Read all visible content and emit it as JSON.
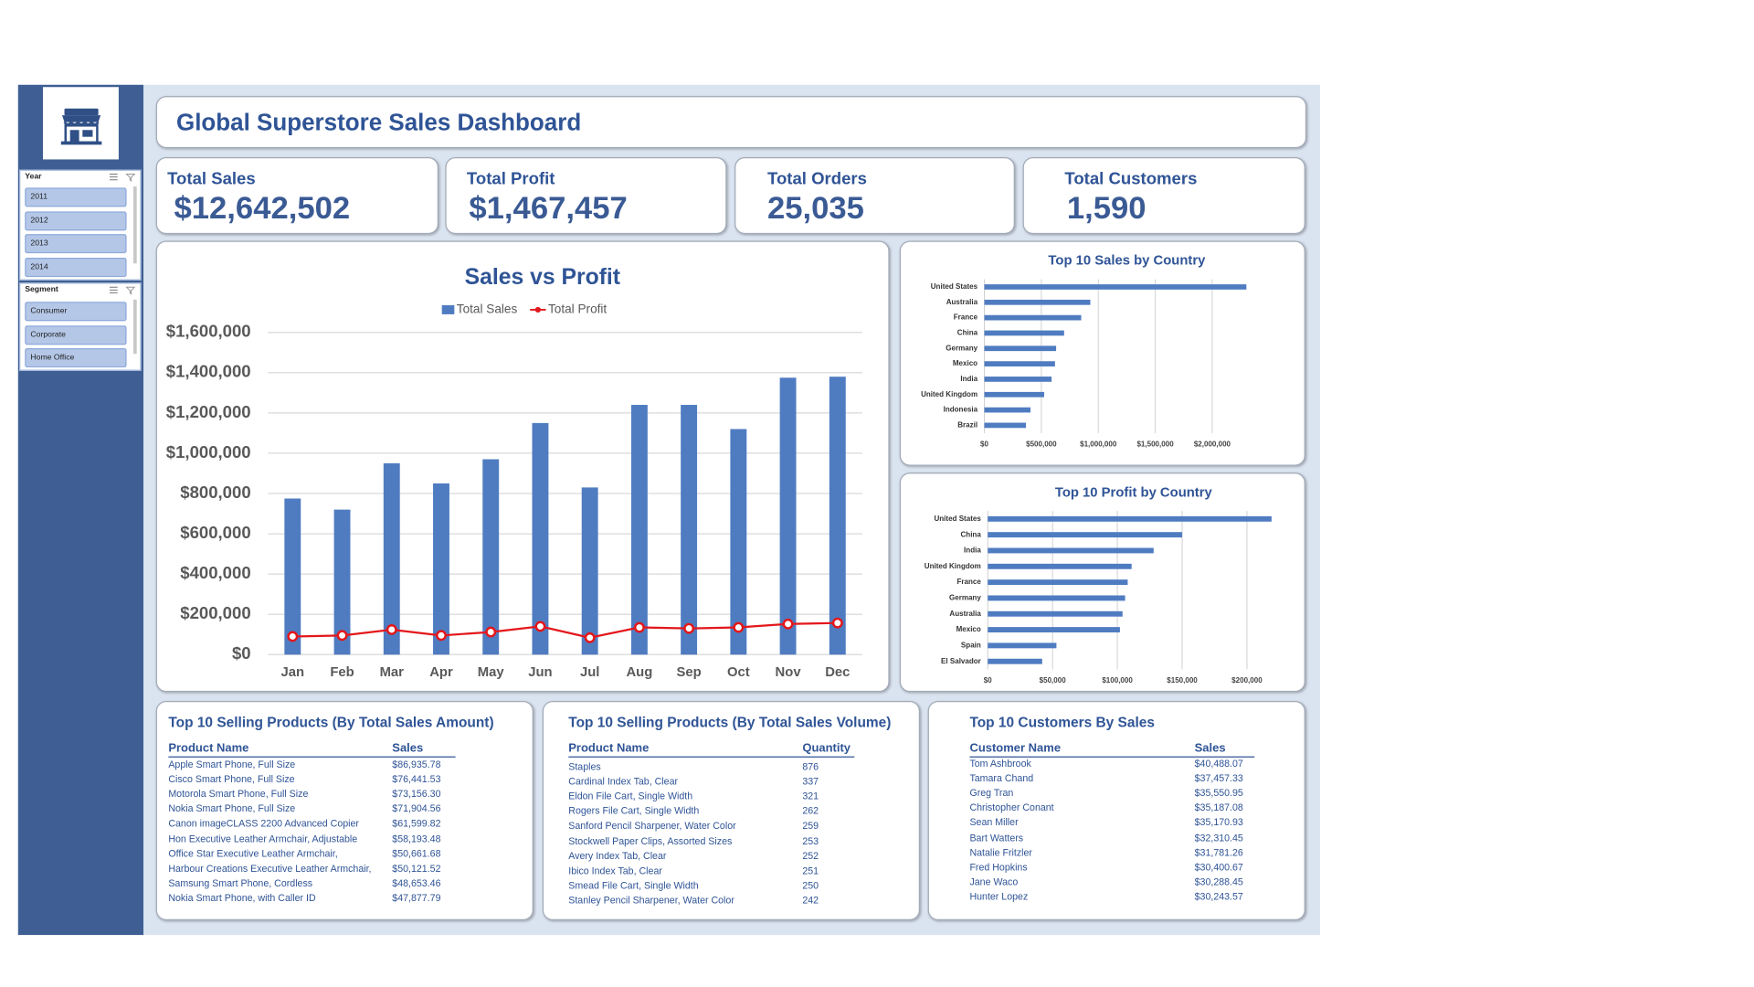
{
  "header": {
    "title": "Global Superstore Sales Dashboard"
  },
  "sidebar": {
    "slicers": [
      {
        "title": "Year",
        "items": [
          "2011",
          "2012",
          "2013",
          "2014"
        ]
      },
      {
        "title": "Segment",
        "items": [
          "Consumer",
          "Corporate",
          "Home Office"
        ]
      }
    ]
  },
  "kpis": [
    {
      "label": "Total Sales",
      "value": "$12,642,502"
    },
    {
      "label": "Total Profit",
      "value": "$1,467,457"
    },
    {
      "label": "Total Orders",
      "value": "25,035"
    },
    {
      "label": "Total Customers",
      "value": "1,590"
    }
  ],
  "chart_data": [
    {
      "type": "bar",
      "title": "Sales vs Profit",
      "legend": "top",
      "grid": true,
      "categories": [
        "Jan",
        "Feb",
        "Mar",
        "Apr",
        "May",
        "Jun",
        "Jul",
        "Aug",
        "Sep",
        "Oct",
        "Nov",
        "Dec"
      ],
      "series": [
        {
          "name": "Total Sales",
          "color": "#4f7cc1",
          "values": [
            775000,
            720000,
            950000,
            850000,
            970000,
            1150000,
            830000,
            1240000,
            1240000,
            1120000,
            1375000,
            1380000
          ]
        },
        {
          "name": "Total Profit",
          "color": "#e3171b",
          "type": "line",
          "values": [
            90000,
            95000,
            124000,
            95000,
            112000,
            140000,
            84000,
            135000,
            130000,
            135000,
            152000,
            157000
          ]
        }
      ],
      "ylim": [
        0,
        1600000
      ],
      "yticks": [
        {
          "value": 0,
          "label": "$0"
        },
        {
          "value": 200000,
          "label": "$200,000"
        },
        {
          "value": 400000,
          "label": "$400,000"
        },
        {
          "value": 600000,
          "label": "$600,000"
        },
        {
          "value": 800000,
          "label": "$800,000"
        },
        {
          "value": 1000000,
          "label": "$1,000,000"
        },
        {
          "value": 1200000,
          "label": "$1,200,000"
        },
        {
          "value": 1400000,
          "label": "$1,400,000"
        },
        {
          "value": 1600000,
          "label": "$1,600,000"
        }
      ]
    },
    {
      "type": "bar",
      "orientation": "horizontal",
      "title": "Top 10 Sales by Country",
      "grid": true,
      "color": "#4f7cc1",
      "categories": [
        "United States",
        "Australia",
        "France",
        "China",
        "Germany",
        "Mexico",
        "India",
        "United Kingdom",
        "Indonesia",
        "Brazil"
      ],
      "values": [
        2300000,
        930000,
        850000,
        700000,
        630000,
        620000,
        590000,
        525000,
        405000,
        365000
      ],
      "xlim": [
        0,
        2500000
      ],
      "xticks": [
        {
          "value": 0,
          "label": "$0"
        },
        {
          "value": 500000,
          "label": "$500,000"
        },
        {
          "value": 1000000,
          "label": "$1,000,000"
        },
        {
          "value": 1500000,
          "label": "$1,500,000"
        },
        {
          "value": 2000000,
          "label": "$2,000,000"
        }
      ]
    },
    {
      "type": "bar",
      "orientation": "horizontal",
      "title": "Top 10 Profit by Country",
      "grid": true,
      "color": "#4f7cc1",
      "categories": [
        "United States",
        "China",
        "India",
        "United Kingdom",
        "France",
        "Germany",
        "Australia",
        "Mexico",
        "Spain",
        "El Salvador"
      ],
      "values": [
        219000,
        150000,
        128000,
        111000,
        108000,
        106000,
        104000,
        102000,
        53000,
        42000
      ],
      "xlim": [
        0,
        225000
      ],
      "xticks": [
        {
          "value": 0,
          "label": "$0"
        },
        {
          "value": 50000,
          "label": "$50,000"
        },
        {
          "value": 100000,
          "label": "$100,000"
        },
        {
          "value": 150000,
          "label": "$150,000"
        },
        {
          "value": 200000,
          "label": "$200,000"
        }
      ]
    }
  ],
  "tables": [
    {
      "title": "Top 10 Selling Products (By Total Sales Amount)",
      "columns": [
        "Product Name",
        "Sales"
      ],
      "rows": [
        [
          "Apple Smart Phone, Full Size",
          "$86,935.78"
        ],
        [
          "Cisco Smart Phone, Full Size",
          "$76,441.53"
        ],
        [
          "Motorola Smart Phone, Full Size",
          "$73,156.30"
        ],
        [
          "Nokia Smart Phone, Full Size",
          "$71,904.56"
        ],
        [
          "Canon imageCLASS 2200 Advanced Copier",
          "$61,599.82"
        ],
        [
          "Hon Executive Leather Armchair, Adjustable",
          "$58,193.48"
        ],
        [
          "Office Star Executive Leather Armchair,",
          "$50,661.68"
        ],
        [
          "Harbour Creations Executive Leather Armchair,",
          "$50,121.52"
        ],
        [
          "Samsung Smart Phone, Cordless",
          "$48,653.46"
        ],
        [
          "Nokia Smart Phone, with Caller ID",
          "$47,877.79"
        ]
      ]
    },
    {
      "title": "Top 10 Selling Products (By Total Sales Volume)",
      "columns": [
        "Product Name",
        "Quantity"
      ],
      "rows": [
        [
          "Staples",
          "876"
        ],
        [
          "Cardinal Index Tab, Clear",
          "337"
        ],
        [
          "Eldon File Cart, Single Width",
          "321"
        ],
        [
          "Rogers File Cart, Single Width",
          "262"
        ],
        [
          "Sanford Pencil Sharpener, Water Color",
          "259"
        ],
        [
          "Stockwell Paper Clips, Assorted Sizes",
          "253"
        ],
        [
          "Avery Index Tab, Clear",
          "252"
        ],
        [
          "Ibico Index Tab, Clear",
          "251"
        ],
        [
          "Smead File Cart, Single Width",
          "250"
        ],
        [
          "Stanley Pencil Sharpener, Water Color",
          "242"
        ]
      ]
    },
    {
      "title": "Top 10 Customers By Sales",
      "columns": [
        "Customer Name",
        "Sales"
      ],
      "rows": [
        [
          "Tom Ashbrook",
          "$40,488.07"
        ],
        [
          "Tamara Chand",
          "$37,457.33"
        ],
        [
          "Greg Tran",
          "$35,550.95"
        ],
        [
          "Christopher Conant",
          "$35,187.08"
        ],
        [
          "Sean Miller",
          "$35,170.93"
        ],
        [
          "Bart Watters",
          "$32,310.45"
        ],
        [
          "Natalie Fritzler",
          "$31,781.26"
        ],
        [
          "Fred Hopkins",
          "$30,400.67"
        ],
        [
          "Jane Waco",
          "$30,288.45"
        ],
        [
          "Hunter Lopez",
          "$30,243.57"
        ]
      ]
    }
  ]
}
